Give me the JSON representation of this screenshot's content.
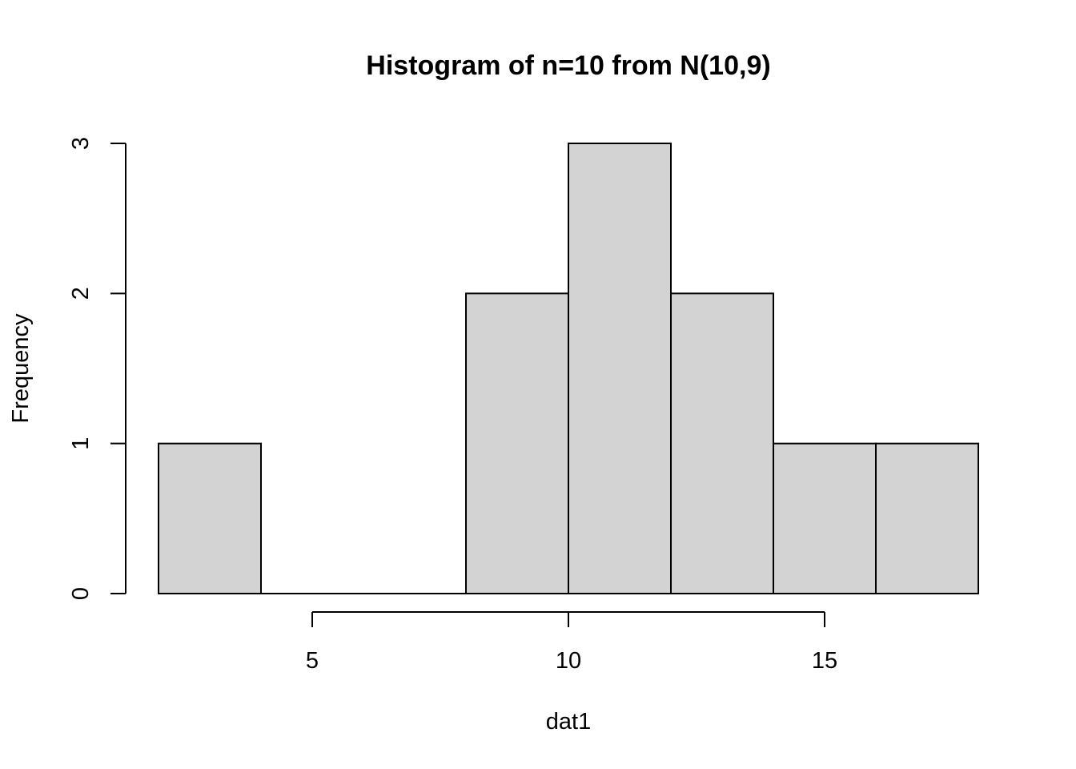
{
  "chart_data": {
    "type": "bar",
    "title": "Histogram of n=10 from N(10,9)",
    "xlabel": "dat1",
    "ylabel": "Frequency",
    "bins": [
      {
        "start": 2,
        "end": 4,
        "count": 1
      },
      {
        "start": 4,
        "end": 6,
        "count": 0
      },
      {
        "start": 6,
        "end": 8,
        "count": 0
      },
      {
        "start": 8,
        "end": 10,
        "count": 2
      },
      {
        "start": 10,
        "end": 12,
        "count": 3
      },
      {
        "start": 12,
        "end": 14,
        "count": 2
      },
      {
        "start": 14,
        "end": 16,
        "count": 1
      },
      {
        "start": 16,
        "end": 18,
        "count": 1
      }
    ],
    "xlim": [
      2,
      18
    ],
    "ylim": [
      0,
      3
    ],
    "xticks": [
      "5",
      "10",
      "15"
    ],
    "yticks": [
      "0",
      "1",
      "2",
      "3"
    ],
    "grid": false,
    "legend": "none",
    "bar_color": "#d3d3d3",
    "border_color": "#000000"
  }
}
